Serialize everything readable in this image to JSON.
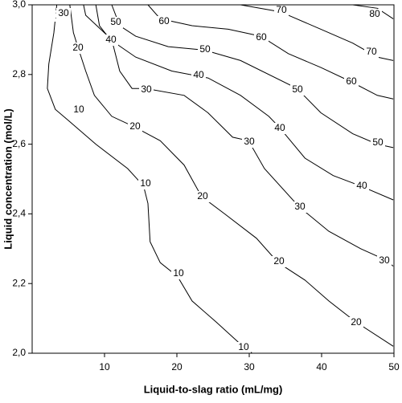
{
  "chart_data": {
    "type": "contour",
    "x_label": "Liquid-to-slag ratio (mL/mg)",
    "y_label": "Liquid concentration (mol/L)",
    "xlim": [
      0,
      50
    ],
    "ylim": [
      2.0,
      3.0
    ],
    "xticks": [
      10,
      20,
      30,
      40,
      50
    ],
    "yticks": [
      {
        "value": 2.0,
        "label": "2,0"
      },
      {
        "value": 2.2,
        "label": "2,2"
      },
      {
        "value": 2.4,
        "label": "2,4"
      },
      {
        "value": 2.6,
        "label": "2,6"
      },
      {
        "value": 2.8,
        "label": "2,8"
      },
      {
        "value": 3.0,
        "label": "3,0"
      }
    ],
    "color": "#000000",
    "contours": [
      {
        "level": 10,
        "x": [
          3.4,
          3.0,
          2.3,
          2.1,
          3.2,
          4.9,
          8.8,
          13.2,
          15.4,
          16.0,
          16.3,
          17.7,
          20.1,
          22.1,
          25.4,
          29.1,
          30.4
        ],
        "y": [
          3.0,
          2.92,
          2.83,
          2.76,
          2.7,
          2.67,
          2.6,
          2.53,
          2.48,
          2.43,
          2.32,
          2.26,
          2.22,
          2.15,
          2.09,
          2.02,
          2.0
        ]
      },
      {
        "level": 20,
        "x": [
          5.2,
          5.7,
          6.3,
          7.4,
          8.6,
          11.0,
          14.1,
          17.7,
          21.0,
          23.4,
          26.6,
          31.0,
          34.0,
          37.7,
          41.0,
          44.7,
          49.9
        ],
        "y": [
          3.0,
          2.92,
          2.88,
          2.81,
          2.74,
          2.68,
          2.65,
          2.61,
          2.54,
          2.45,
          2.4,
          2.33,
          2.26,
          2.21,
          2.15,
          2.09,
          2.02
        ]
      },
      {
        "level": 30,
        "x": [
          7.1,
          7.4,
          11.0,
          12.1,
          13.8,
          15.7,
          21.0,
          24.3,
          27.7,
          29.9,
          32.1,
          36.9,
          41.0,
          45.4,
          48.6,
          49.9
        ],
        "y": [
          3.0,
          2.97,
          2.9,
          2.81,
          2.76,
          2.76,
          2.74,
          2.69,
          2.62,
          2.61,
          2.53,
          2.42,
          2.35,
          2.3,
          2.27,
          2.25
        ]
      },
      {
        "level": 40,
        "x": [
          8.8,
          9.3,
          10.8,
          14.3,
          19.3,
          24.3,
          28.8,
          32.7,
          34.1,
          37.7,
          41.6,
          45.4,
          49.9
        ],
        "y": [
          3.0,
          2.94,
          2.9,
          2.85,
          2.81,
          2.79,
          2.74,
          2.68,
          2.65,
          2.56,
          2.51,
          2.48,
          2.44
        ]
      },
      {
        "level": 50,
        "x": [
          11.0,
          12.1,
          14.3,
          18.8,
          23.8,
          28.8,
          36.6,
          39.9,
          44.3,
          47.7,
          49.9
        ],
        "y": [
          3.0,
          2.94,
          2.91,
          2.88,
          2.87,
          2.84,
          2.76,
          2.69,
          2.63,
          2.6,
          2.59
        ]
      },
      {
        "level": 60,
        "x": [
          16.0,
          17.7,
          22.1,
          27.1,
          31.6,
          35.4,
          39.9,
          44.0,
          47.7,
          49.9
        ],
        "y": [
          3.0,
          2.96,
          2.94,
          2.93,
          2.91,
          2.86,
          2.82,
          2.78,
          2.74,
          2.73
        ]
      },
      {
        "level": 70,
        "x": [
          28.8,
          34.3,
          39.9,
          44.3,
          47.7,
          49.9
        ],
        "y": [
          3.0,
          2.98,
          2.93,
          2.89,
          2.85,
          2.84
        ]
      },
      {
        "level": 80,
        "x": [
          44.3,
          47.7,
          49.9
        ],
        "y": [
          3.0,
          2.99,
          2.96
        ]
      }
    ]
  }
}
